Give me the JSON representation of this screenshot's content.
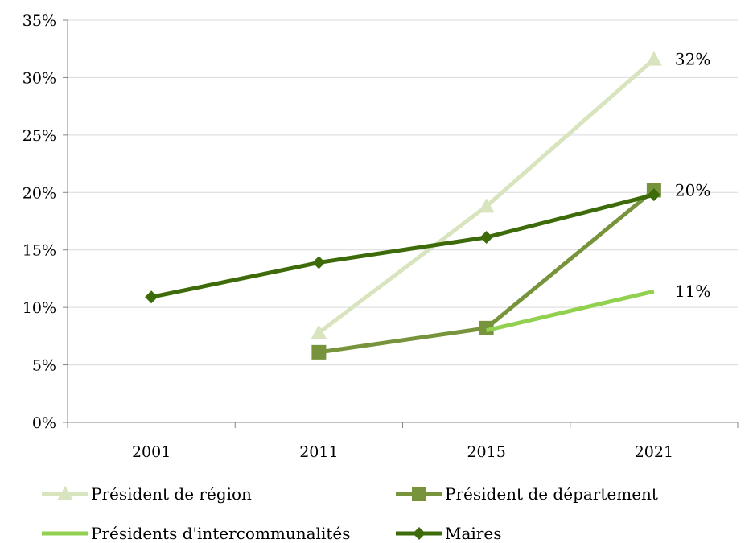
{
  "chart_data": {
    "type": "line",
    "categories": [
      "2001",
      "2011",
      "2015",
      "2021"
    ],
    "ylim": [
      0,
      35
    ],
    "yticks": [
      "0%",
      "5%",
      "10%",
      "15%",
      "20%",
      "25%",
      "30%",
      "35%"
    ],
    "grid": true,
    "legend_position": "bottom",
    "series": [
      {
        "name": "Président de région",
        "values": [
          null,
          7.8,
          18.8,
          31.6
        ],
        "color": "#d7e4bd",
        "marker": "triangle"
      },
      {
        "name": "Président de département",
        "values": [
          null,
          6.1,
          8.2,
          20.2
        ],
        "color": "#77933c",
        "marker": "square"
      },
      {
        "name": "Présidents d'intercommunalités",
        "values": [
          null,
          null,
          8.0,
          11.4
        ],
        "color": "#92d050",
        "marker": "none"
      },
      {
        "name": "Maires",
        "values": [
          10.9,
          13.9,
          16.1,
          19.8
        ],
        "color": "#3e6b0a",
        "marker": "diamond"
      }
    ],
    "data_labels": [
      {
        "text": "32%",
        "series": 0,
        "index": 3
      },
      {
        "text": "20%",
        "series": 1,
        "index": 3
      },
      {
        "text": "11%",
        "series": 2,
        "index": 3
      }
    ]
  }
}
